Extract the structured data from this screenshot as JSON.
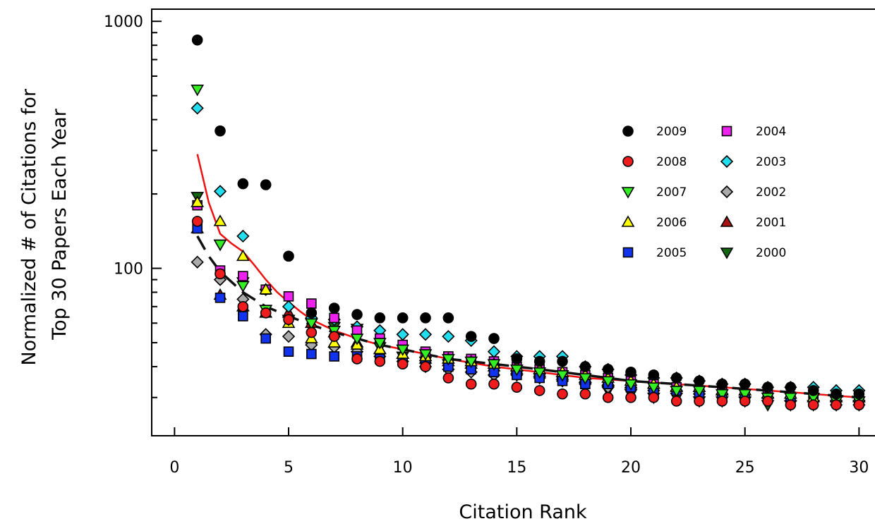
{
  "chart_data": {
    "type": "scatter",
    "xlabel": "Citation Rank",
    "ylabel_lines": [
      "Normalized # of Citations for",
      "Top 30 Papers Each Year"
    ],
    "x_range": [
      -1,
      30.7
    ],
    "y_range": [
      21,
      1120
    ],
    "y_scale": "log",
    "x_ticks": [
      0,
      5,
      10,
      15,
      20,
      25,
      30
    ],
    "x_tick_labels": [
      "0",
      "5",
      "10",
      "15",
      "20",
      "25",
      "30"
    ],
    "y_ticks": [
      100,
      1000
    ],
    "y_tick_labels": [
      "100",
      "1000"
    ],
    "grid": false,
    "legend_placement": "right",
    "series": [
      {
        "name": "2009",
        "marker": "circle",
        "color": "#000000",
        "x": [
          1,
          2,
          3,
          4,
          5,
          6,
          7,
          8,
          9,
          10,
          11,
          12,
          13,
          14,
          15,
          16,
          17,
          18,
          19,
          20,
          21,
          22,
          23,
          24,
          25,
          26,
          27,
          28,
          29,
          30
        ],
        "y": [
          840,
          360,
          220,
          218,
          112,
          66,
          69,
          65,
          63,
          63,
          63,
          63,
          53,
          52,
          43,
          42,
          42,
          40,
          39,
          38,
          37,
          36,
          35,
          34,
          34,
          33,
          33,
          32,
          31,
          31
        ]
      },
      {
        "name": "2008",
        "marker": "circle",
        "color": "#ee1c1c",
        "x": [
          1,
          2,
          3,
          4,
          5,
          6,
          7,
          8,
          9,
          10,
          11,
          12,
          13,
          14,
          15,
          16,
          17,
          18,
          19,
          20,
          21,
          22,
          23,
          24,
          25,
          26,
          27,
          28,
          29,
          30
        ],
        "y": [
          155,
          95,
          70,
          66,
          62,
          55,
          53,
          43,
          42,
          41,
          40,
          36,
          34,
          34,
          33,
          32,
          31,
          31,
          30,
          30,
          30,
          29,
          29,
          29,
          29,
          29,
          28,
          28,
          28,
          28
        ]
      },
      {
        "name": "2007",
        "marker": "triangle-down",
        "color": "#33ee22",
        "x": [
          1,
          2,
          3,
          4,
          5,
          6,
          7,
          8,
          9,
          10,
          11,
          12,
          13,
          14,
          15,
          16,
          17,
          18,
          19,
          20,
          21,
          22,
          23,
          24,
          25,
          26,
          27,
          28,
          29,
          30
        ],
        "y": [
          530,
          125,
          85,
          68,
          62,
          60,
          56,
          52,
          50,
          47,
          45,
          43,
          42,
          41,
          39,
          38,
          37,
          36,
          35,
          34,
          33,
          32,
          32,
          31,
          31,
          30,
          30,
          30,
          29,
          29
        ]
      },
      {
        "name": "2006",
        "marker": "triangle-up",
        "color": "#ffff00",
        "x": [
          1,
          2,
          3,
          4,
          5,
          6,
          7,
          8,
          9,
          10,
          11,
          12,
          13,
          14,
          15,
          16,
          17,
          18,
          19,
          20,
          21,
          22,
          23,
          24,
          25,
          26,
          27,
          28,
          29,
          30
        ],
        "y": [
          185,
          155,
          112,
          82,
          60,
          52,
          50,
          49,
          47,
          45,
          44,
          43,
          42,
          41,
          40,
          39,
          38,
          37,
          36,
          35,
          34,
          33,
          33,
          32,
          32,
          31,
          31,
          30,
          30,
          30
        ]
      },
      {
        "name": "2005",
        "marker": "square",
        "color": "#1133ee",
        "x": [
          1,
          2,
          3,
          4,
          5,
          6,
          7,
          8,
          9,
          10,
          11,
          12,
          13,
          14,
          15,
          16,
          17,
          18,
          19,
          20,
          21,
          22,
          23,
          24,
          25,
          26,
          27,
          28,
          29,
          30
        ],
        "y": [
          145,
          76,
          64,
          52,
          46,
          45,
          44,
          44,
          43,
          42,
          41,
          40,
          39,
          38,
          37,
          36,
          35,
          34,
          34,
          33,
          32,
          32,
          31,
          31,
          30,
          30,
          30,
          29,
          29,
          29
        ]
      },
      {
        "name": "2004",
        "marker": "square",
        "color": "#ee22ee",
        "x": [
          1,
          2,
          3,
          4,
          5,
          6,
          7,
          8,
          9,
          10,
          11,
          12,
          13,
          14,
          15,
          16,
          17,
          18,
          19,
          20,
          21,
          22,
          23,
          24,
          25,
          26,
          27,
          28,
          29,
          30
        ],
        "y": [
          180,
          98,
          93,
          82,
          77,
          72,
          63,
          56,
          52,
          49,
          46,
          44,
          43,
          42,
          40,
          39,
          38,
          37,
          36,
          35,
          34,
          33,
          32,
          32,
          31,
          31,
          30,
          30,
          30,
          29
        ]
      },
      {
        "name": "2003",
        "marker": "diamond",
        "color": "#22ddee",
        "x": [
          1,
          2,
          3,
          4,
          5,
          6,
          7,
          8,
          9,
          10,
          11,
          12,
          13,
          14,
          15,
          16,
          17,
          18,
          19,
          20,
          21,
          22,
          23,
          24,
          25,
          26,
          27,
          28,
          29,
          30
        ],
        "y": [
          445,
          205,
          135,
          82,
          70,
          63,
          62,
          58,
          56,
          54,
          54,
          53,
          51,
          46,
          44,
          44,
          44,
          40,
          39,
          37,
          36,
          36,
          35,
          34,
          34,
          33,
          33,
          33,
          32,
          32
        ]
      },
      {
        "name": "2002",
        "marker": "diamond",
        "color": "#aaaaaa",
        "x": [
          1,
          2,
          3,
          4,
          5,
          6,
          7,
          8,
          9,
          10,
          11,
          12,
          13,
          14,
          15,
          16,
          17,
          18,
          19,
          20,
          21,
          22,
          23,
          24,
          25,
          26,
          27,
          28,
          29,
          30
        ],
        "y": [
          106,
          90,
          75,
          54,
          53,
          49,
          48,
          46,
          44,
          42,
          40,
          39,
          38,
          37,
          37,
          36,
          35,
          34,
          33,
          33,
          32,
          32,
          31,
          31,
          30,
          30,
          29,
          29,
          28,
          28
        ]
      },
      {
        "name": "2001",
        "marker": "triangle-up",
        "color": "#aa1111",
        "x": [
          1,
          2,
          3,
          4,
          5,
          6,
          7,
          8,
          9,
          10,
          11,
          12,
          13,
          14,
          15,
          16,
          17,
          18,
          19,
          20,
          21,
          22,
          23,
          24,
          25,
          26,
          27,
          28,
          29,
          30
        ],
        "y": [
          145,
          78,
          70,
          66,
          66,
          60,
          55,
          50,
          47,
          45,
          43,
          42,
          41,
          40,
          39,
          38,
          37,
          36,
          35,
          34,
          34,
          33,
          33,
          32,
          32,
          31,
          31,
          30,
          30,
          30
        ]
      },
      {
        "name": "2000",
        "marker": "triangle-down",
        "color": "#116611",
        "x": [
          1,
          2,
          3,
          4,
          5,
          6,
          7,
          8,
          9,
          10,
          11,
          12,
          13,
          14,
          15,
          16,
          17,
          18,
          19,
          20,
          21,
          22,
          23,
          24,
          25,
          26,
          27,
          28,
          29,
          30
        ],
        "y": [
          195,
          125,
          88,
          68,
          62,
          60,
          58,
          57,
          48,
          44,
          42,
          41,
          40,
          39,
          37,
          36,
          35,
          33,
          32,
          31,
          30,
          30,
          29,
          29,
          29,
          28,
          28,
          28,
          28,
          28
        ]
      }
    ],
    "fit_lines": [
      {
        "style": "solid",
        "color": "#ee1111",
        "x": [
          1,
          1.5,
          2,
          2.5,
          3,
          3.5,
          4,
          4.5,
          5,
          5.5,
          6,
          7,
          8,
          9,
          10,
          12,
          14,
          16,
          18,
          20,
          22,
          24,
          26,
          28,
          30
        ],
        "y": [
          290,
          185,
          138,
          126,
          117,
          103,
          90,
          80,
          73,
          67,
          62,
          56,
          52,
          49,
          47,
          43,
          40,
          38,
          36,
          35,
          34,
          33,
          32,
          31,
          30
        ]
      },
      {
        "style": "dashed",
        "color": "#111111",
        "x": [
          1,
          1.5,
          2,
          3,
          4,
          5,
          6,
          7,
          8,
          9,
          10,
          12,
          14,
          16,
          18,
          20,
          22,
          24,
          26,
          28,
          30
        ],
        "y": [
          135,
          112,
          97,
          80,
          70,
          64,
          59,
          55,
          52,
          49,
          47,
          43,
          41,
          39,
          37,
          35,
          34,
          33,
          32,
          31,
          30
        ]
      }
    ]
  }
}
